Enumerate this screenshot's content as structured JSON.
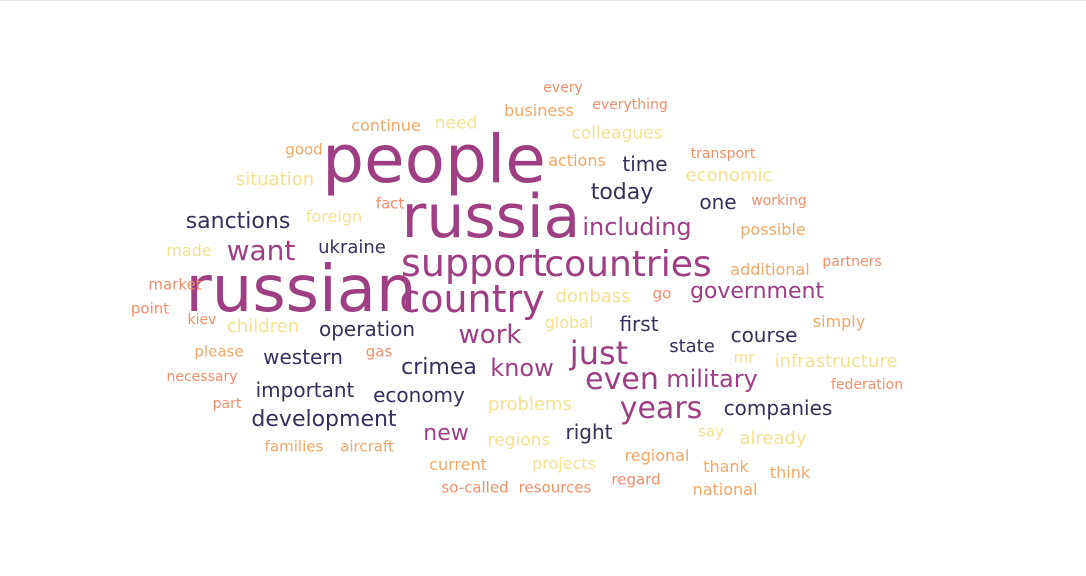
{
  "palette": {
    "dark": "#35305c",
    "purple": "#9e3f84",
    "yellow": "#f3e291",
    "salmon": "#ef8f6b",
    "orange": "#f2a866"
  },
  "words": [
    {
      "text": "people",
      "weight": 1.0,
      "color": "purple"
    },
    {
      "text": "russia",
      "weight": 0.92,
      "color": "purple"
    },
    {
      "text": "russian",
      "weight": 0.98,
      "color": "purple"
    },
    {
      "text": "support",
      "weight": 0.62,
      "color": "purple"
    },
    {
      "text": "countries",
      "weight": 0.6,
      "color": "purple"
    },
    {
      "text": "country",
      "weight": 0.6,
      "color": "purple"
    },
    {
      "text": "just",
      "weight": 0.5,
      "color": "purple"
    },
    {
      "text": "even",
      "weight": 0.48,
      "color": "purple"
    },
    {
      "text": "years",
      "weight": 0.48,
      "color": "purple"
    },
    {
      "text": "want",
      "weight": 0.44,
      "color": "purple"
    },
    {
      "text": "work",
      "weight": 0.42,
      "color": "purple"
    },
    {
      "text": "including",
      "weight": 0.4,
      "color": "purple"
    },
    {
      "text": "military",
      "weight": 0.39,
      "color": "purple"
    },
    {
      "text": "know",
      "weight": 0.39,
      "color": "purple"
    },
    {
      "text": "government",
      "weight": 0.37,
      "color": "purple"
    },
    {
      "text": "new",
      "weight": 0.37,
      "color": "purple"
    },
    {
      "text": "crimea",
      "weight": 0.37,
      "color": "dark"
    },
    {
      "text": "sanctions",
      "weight": 0.36,
      "color": "dark"
    },
    {
      "text": "development",
      "weight": 0.35,
      "color": "dark"
    },
    {
      "text": "today",
      "weight": 0.34,
      "color": "dark"
    },
    {
      "text": "time",
      "weight": 0.33,
      "color": "dark"
    },
    {
      "text": "companies",
      "weight": 0.33,
      "color": "dark"
    },
    {
      "text": "one",
      "weight": 0.33,
      "color": "dark"
    },
    {
      "text": "operation",
      "weight": 0.32,
      "color": "dark"
    },
    {
      "text": "course",
      "weight": 0.31,
      "color": "dark"
    },
    {
      "text": "first",
      "weight": 0.31,
      "color": "dark"
    },
    {
      "text": "right",
      "weight": 0.31,
      "color": "dark"
    },
    {
      "text": "economy",
      "weight": 0.31,
      "color": "dark"
    },
    {
      "text": "western",
      "weight": 0.3,
      "color": "dark"
    },
    {
      "text": "important",
      "weight": 0.3,
      "color": "dark"
    },
    {
      "text": "ukraine",
      "weight": 0.28,
      "color": "dark"
    },
    {
      "text": "state",
      "weight": 0.28,
      "color": "dark"
    },
    {
      "text": "economic",
      "weight": 0.28,
      "color": "yellow"
    },
    {
      "text": "situation",
      "weight": 0.28,
      "color": "yellow"
    },
    {
      "text": "problems",
      "weight": 0.28,
      "color": "yellow"
    },
    {
      "text": "already",
      "weight": 0.28,
      "color": "yellow"
    },
    {
      "text": "donbass",
      "weight": 0.27,
      "color": "yellow"
    },
    {
      "text": "children",
      "weight": 0.27,
      "color": "yellow"
    },
    {
      "text": "infrastructure",
      "weight": 0.27,
      "color": "yellow"
    },
    {
      "text": "colleagues",
      "weight": 0.26,
      "color": "yellow"
    },
    {
      "text": "regions",
      "weight": 0.26,
      "color": "yellow"
    },
    {
      "text": "need",
      "weight": 0.26,
      "color": "yellow"
    },
    {
      "text": "foreign",
      "weight": 0.25,
      "color": "yellow"
    },
    {
      "text": "made",
      "weight": 0.25,
      "color": "yellow"
    },
    {
      "text": "global",
      "weight": 0.24,
      "color": "yellow"
    },
    {
      "text": "projects",
      "weight": 0.24,
      "color": "yellow"
    },
    {
      "text": "say",
      "weight": 0.24,
      "color": "yellow"
    },
    {
      "text": "mr",
      "weight": 0.24,
      "color": "yellow"
    },
    {
      "text": "continue",
      "weight": 0.24,
      "color": "orange"
    },
    {
      "text": "business",
      "weight": 0.24,
      "color": "orange"
    },
    {
      "text": "actions",
      "weight": 0.24,
      "color": "orange"
    },
    {
      "text": "additional",
      "weight": 0.24,
      "color": "orange"
    },
    {
      "text": "possible",
      "weight": 0.24,
      "color": "orange"
    },
    {
      "text": "simply",
      "weight": 0.24,
      "color": "orange"
    },
    {
      "text": "current",
      "weight": 0.24,
      "color": "orange"
    },
    {
      "text": "regional",
      "weight": 0.24,
      "color": "orange"
    },
    {
      "text": "thank",
      "weight": 0.24,
      "color": "orange"
    },
    {
      "text": "think",
      "weight": 0.24,
      "color": "orange"
    },
    {
      "text": "national",
      "weight": 0.24,
      "color": "orange"
    },
    {
      "text": "families",
      "weight": 0.23,
      "color": "orange"
    },
    {
      "text": "aircraft",
      "weight": 0.23,
      "color": "orange"
    },
    {
      "text": "please",
      "weight": 0.23,
      "color": "orange"
    },
    {
      "text": "good",
      "weight": 0.23,
      "color": "orange"
    },
    {
      "text": "everything",
      "weight": 0.22,
      "color": "salmon"
    },
    {
      "text": "every",
      "weight": 0.21,
      "color": "salmon"
    },
    {
      "text": "transport",
      "weight": 0.21,
      "color": "salmon"
    },
    {
      "text": "working",
      "weight": 0.21,
      "color": "salmon"
    },
    {
      "text": "partners",
      "weight": 0.21,
      "color": "salmon"
    },
    {
      "text": "federation",
      "weight": 0.21,
      "color": "salmon"
    },
    {
      "text": "fact",
      "weight": 0.21,
      "color": "salmon"
    },
    {
      "text": "go",
      "weight": 0.21,
      "color": "salmon"
    },
    {
      "text": "gas",
      "weight": 0.21,
      "color": "salmon"
    },
    {
      "text": "market",
      "weight": 0.21,
      "color": "salmon"
    },
    {
      "text": "point",
      "weight": 0.21,
      "color": "salmon"
    },
    {
      "text": "kiev",
      "weight": 0.21,
      "color": "salmon"
    },
    {
      "text": "necessary",
      "weight": 0.21,
      "color": "salmon"
    },
    {
      "text": "part",
      "weight": 0.21,
      "color": "salmon"
    },
    {
      "text": "so-called",
      "weight": 0.21,
      "color": "salmon"
    },
    {
      "text": "resources",
      "weight": 0.21,
      "color": "salmon"
    },
    {
      "text": "regard",
      "weight": 0.21,
      "color": "salmon"
    }
  ]
}
